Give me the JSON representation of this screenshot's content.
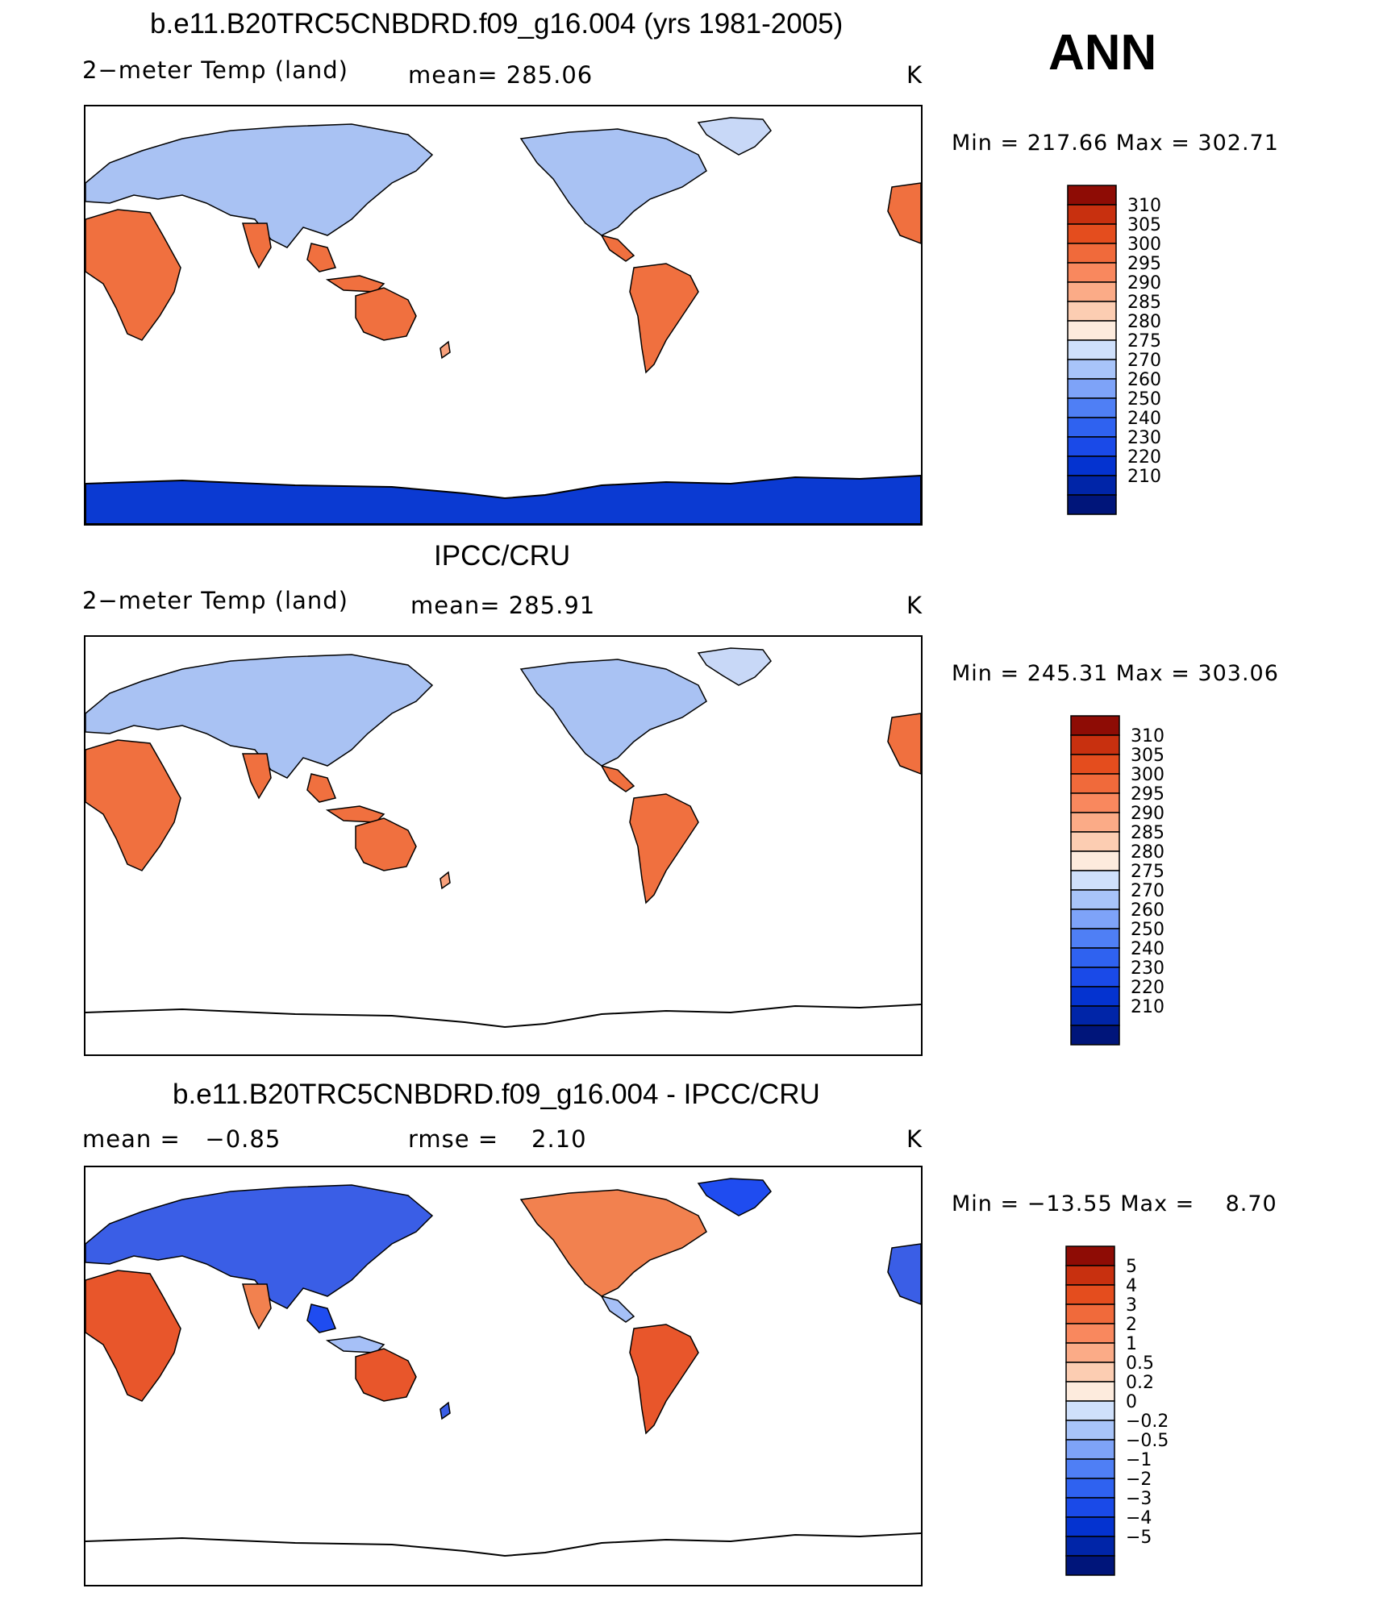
{
  "annotation": "ANN",
  "palette": {
    "temp": [
      "#00157a",
      "#0025a8",
      "#0433d0",
      "#1a4ae8",
      "#2f62f0",
      "#4f7ff5",
      "#7ea3f8",
      "#a8c4f9",
      "#cfe0fb",
      "#fdebdd",
      "#fccdb2",
      "#fbab87",
      "#f9885e",
      "#f06a3b",
      "#e44d1e",
      "#c8300f",
      "#8e0c05"
    ],
    "land_model": [
      "#c8d8f7",
      "#a9c2f3",
      "#fcd0b4",
      "#f7a07b",
      "#f0703f",
      "#e7562c"
    ],
    "land_obs": [
      "#c8d8f7",
      "#a9c2f3",
      "#fcd0b4",
      "#f7a07b",
      "#f0703f",
      "#e7562c"
    ],
    "antarctic": "#0b3ad2",
    "diff": [
      "#e8562b",
      "#3a5ee6",
      "#f2814f",
      "#1f4cf0",
      "#a6c0f7"
    ]
  },
  "panels": [
    {
      "title": "b.e11.B20TRC5CNBDRD.f09_g16.004 (yrs 1981-2005)",
      "left_label": "2−meter Temp (land)",
      "mean_label": "mean=",
      "mean_value": "285.06",
      "units": "K",
      "min_label": "Min",
      "min_value": "217.66",
      "max_label": "Max",
      "max_value": "302.71",
      "colorbar_labels": [
        "310",
        "305",
        "300",
        "295",
        "290",
        "285",
        "280",
        "275",
        "270",
        "260",
        "250",
        "240",
        "230",
        "220",
        "210"
      ]
    },
    {
      "title": "IPCC/CRU",
      "left_label": "2−meter Temp (land)",
      "mean_label": "mean=",
      "mean_value": "285.91",
      "units": "K",
      "min_label": "Min",
      "min_value": "245.31",
      "max_label": "Max",
      "max_value": "303.06",
      "colorbar_labels": [
        "310",
        "305",
        "300",
        "295",
        "290",
        "285",
        "280",
        "275",
        "270",
        "260",
        "250",
        "240",
        "230",
        "220",
        "210"
      ]
    },
    {
      "title": "b.e11.B20TRC5CNBDRD.f09_g16.004 - IPCC/CRU",
      "left_label": "mean =",
      "left_value": "−0.85",
      "mean_label": "rmse =",
      "mean_value": "2.10",
      "units": "K",
      "min_label": "Min",
      "min_value": "−13.55",
      "max_label": "Max",
      "max_value": "8.70",
      "colorbar_labels": [
        "5",
        "4",
        "3",
        "2",
        "1",
        "0.5",
        "0.2",
        "0",
        "−0.2",
        "−0.5",
        "−1",
        "−2",
        "−3",
        "−4",
        "−5"
      ]
    }
  ]
}
